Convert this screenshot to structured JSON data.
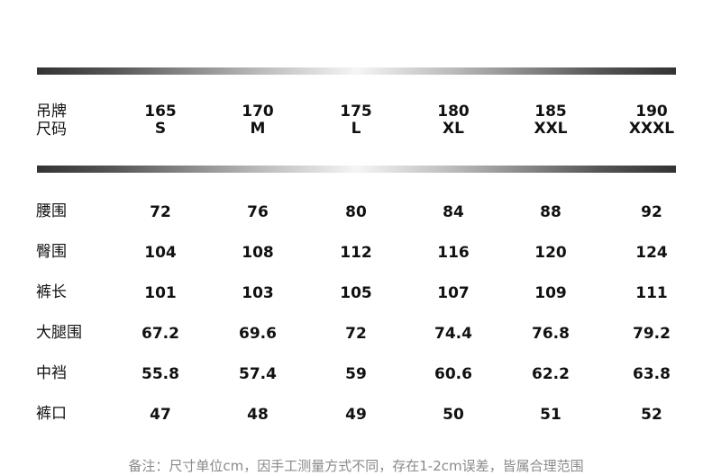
{
  "header": {
    "label_line1": "吊牌",
    "label_line2": "尺码",
    "sizes": [
      {
        "height": "165",
        "size": "S"
      },
      {
        "height": "170",
        "size": "M"
      },
      {
        "height": "175",
        "size": "L"
      },
      {
        "height": "180",
        "size": "XL"
      },
      {
        "height": "185",
        "size": "XXL"
      },
      {
        "height": "190",
        "size": "XXXL"
      }
    ]
  },
  "rows": [
    {
      "label": "腰围",
      "values": [
        "72",
        "76",
        "80",
        "84",
        "88",
        "92"
      ]
    },
    {
      "label": "臀围",
      "values": [
        "104",
        "108",
        "112",
        "116",
        "120",
        "124"
      ]
    },
    {
      "label": "裤长",
      "values": [
        "101",
        "103",
        "105",
        "107",
        "109",
        "111"
      ]
    },
    {
      "label": "大腿围",
      "values": [
        "67.2",
        "69.6",
        "72",
        "74.4",
        "76.8",
        "79.2"
      ]
    },
    {
      "label": "中裆",
      "values": [
        "55.8",
        "57.4",
        "59",
        "60.6",
        "62.2",
        "63.8"
      ]
    },
    {
      "label": "裤口",
      "values": [
        "47",
        "48",
        "49",
        "50",
        "51",
        "52"
      ]
    }
  ],
  "note": "备注：尺寸单位cm，因手工测量方式不同，存在1-2cm误差，皆属合理范围"
}
